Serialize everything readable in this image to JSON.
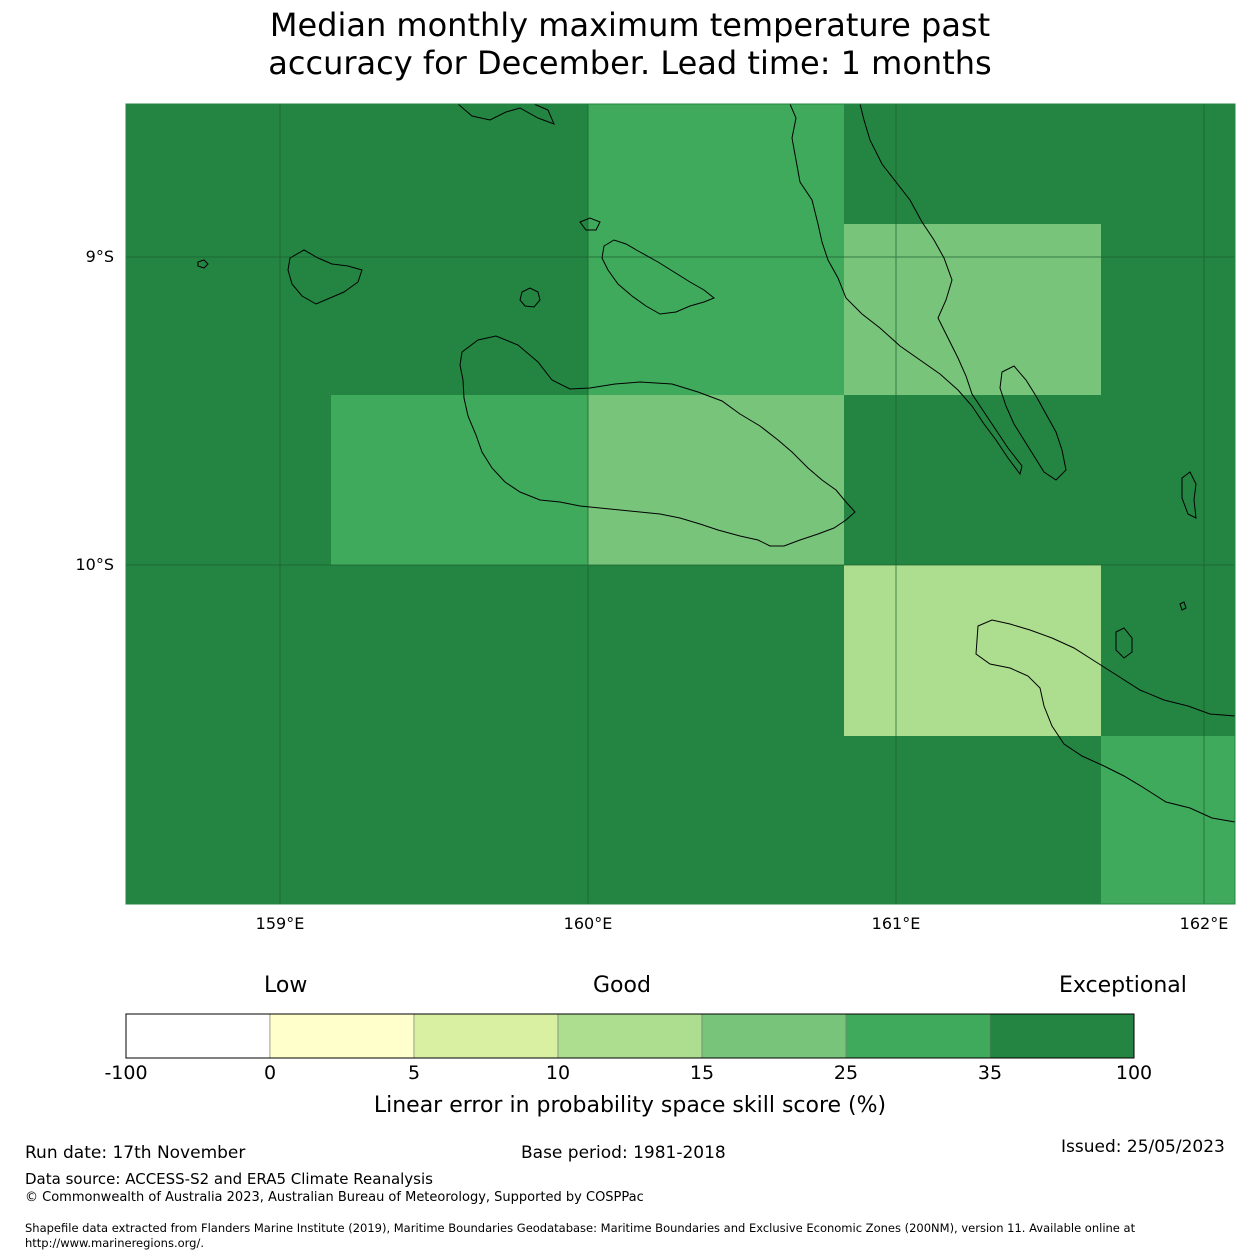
{
  "title": {
    "line1": "Median monthly maximum temperature past",
    "line2": "accuracy for December. Lead time: 1 months"
  },
  "map": {
    "lat_labels": [
      "9°S",
      "10°S"
    ],
    "lon_labels": [
      "159°E",
      "160°E",
      "161°E",
      "162°E"
    ],
    "cell_colors": {
      "cat_35_100": "#248542",
      "cat_25_35": "#40aa5c",
      "cat_15_25": "#78c47b",
      "cat_10_15": "#addd8e"
    }
  },
  "legend": {
    "category_labels": [
      "Low",
      "Good",
      "Exceptional"
    ],
    "bins": [
      {
        "color": "#ffffff"
      },
      {
        "color": "#ffffcc"
      },
      {
        "color": "#d9f0a3"
      },
      {
        "color": "#addd8e"
      },
      {
        "color": "#78c47b"
      },
      {
        "color": "#40aa5c"
      },
      {
        "color": "#248542"
      }
    ],
    "ticks": [
      "-100",
      "0",
      "5",
      "10",
      "15",
      "25",
      "35",
      "100"
    ],
    "axis_label": "Linear error in probability space skill score (%)"
  },
  "footer": {
    "run_date": "Run date: 17th November",
    "base_period": "Base period: 1981-2018",
    "issued": "Issued: 25/05/2023",
    "data_source": "Data source: ACCESS-S2 and ERA5 Climate Reanalysis",
    "copyright": "© Commonwealth of Australia 2023, Australian Bureau of Meteorology, Supported by COSPPac",
    "shapefile_line1": "Shapefile data extracted from Flanders Marine Institute (2019), Maritime Boundaries Geodatabase: Maritime Boundaries and Exclusive Economic Zones (200NM), version 11. Available online at",
    "shapefile_line2": "http://www.marineregions.org/."
  }
}
